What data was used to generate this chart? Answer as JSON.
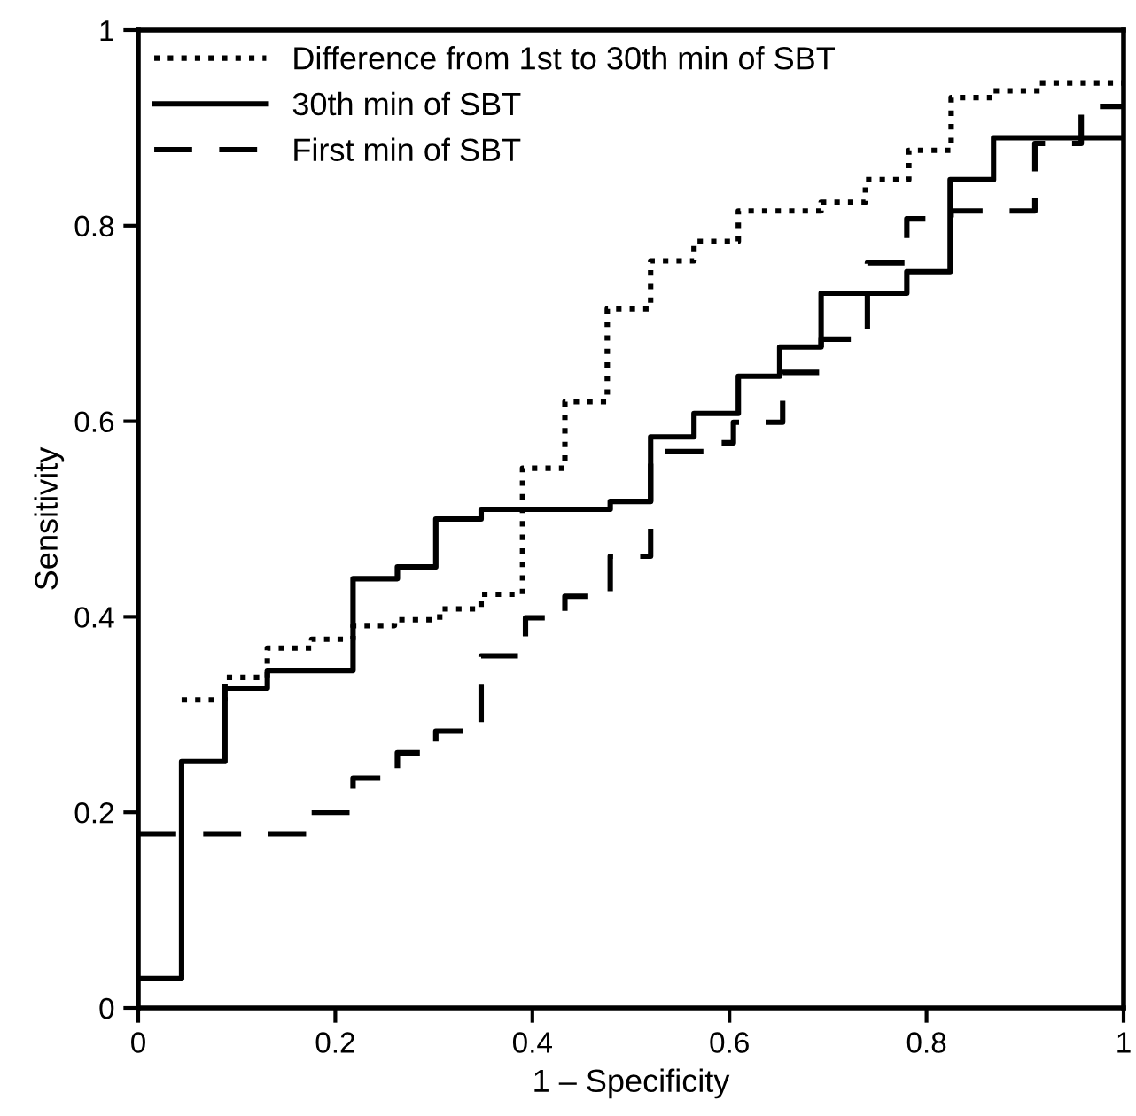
{
  "chart_data": {
    "type": "step",
    "xlabel": "1 – Specificity",
    "ylabel": "Sensitivity",
    "xlim": [
      0,
      1
    ],
    "ylim": [
      0,
      1
    ],
    "xticks": [
      0,
      0.2,
      0.4,
      0.6,
      0.8,
      1
    ],
    "yticks": [
      0,
      0.2,
      0.4,
      0.6,
      0.8,
      1
    ],
    "grid": false,
    "legend": "top left",
    "marker": "none",
    "series": [
      {
        "name": "Difference from 1st to 30th min of SBT",
        "color": "#000000",
        "line_style": "dotted",
        "x": [
          0.044,
          0.088,
          0.131,
          0.176,
          0.218,
          0.26,
          0.306,
          0.348,
          0.39,
          0.433,
          0.476,
          0.52,
          0.564,
          0.609,
          0.693,
          0.738,
          0.782,
          0.825,
          0.868,
          0.915,
          1
        ],
        "values": [
          0.315,
          0.338,
          0.368,
          0.377,
          0.391,
          0.397,
          0.408,
          0.423,
          0.552,
          0.62,
          0.715,
          0.764,
          0.784,
          0.815,
          0.824,
          0.847,
          0.877,
          0.931,
          0.938,
          0.946,
          0.946
        ]
      },
      {
        "name": "30th min of SBT",
        "color": "#000000",
        "line_style": "solid",
        "x": [
          0,
          0.044,
          0.088,
          0.131,
          0.218,
          0.263,
          0.302,
          0.348,
          0.479,
          0.52,
          0.564,
          0.609,
          0.651,
          0.693,
          0.78,
          0.824,
          0.868,
          1
        ],
        "values": [
          0.03,
          0.252,
          0.327,
          0.345,
          0.439,
          0.451,
          0.5,
          0.51,
          0.518,
          0.584,
          0.608,
          0.646,
          0.676,
          0.731,
          0.753,
          0.847,
          0.89,
          0.89
        ]
      },
      {
        "name": "First min of SBT",
        "color": "#000000",
        "line_style": "dashed",
        "x": [
          0,
          0.174,
          0.218,
          0.263,
          0.302,
          0.348,
          0.393,
          0.433,
          0.479,
          0.52,
          0.58,
          0.604,
          0.654,
          0.693,
          0.74,
          0.78,
          0.825,
          0.91,
          0.957,
          1
        ],
        "values": [
          0.178,
          0.2,
          0.235,
          0.261,
          0.283,
          0.36,
          0.399,
          0.421,
          0.462,
          0.569,
          0.578,
          0.599,
          0.65,
          0.684,
          0.762,
          0.807,
          0.815,
          0.884,
          0.922,
          0.922
        ]
      }
    ]
  }
}
